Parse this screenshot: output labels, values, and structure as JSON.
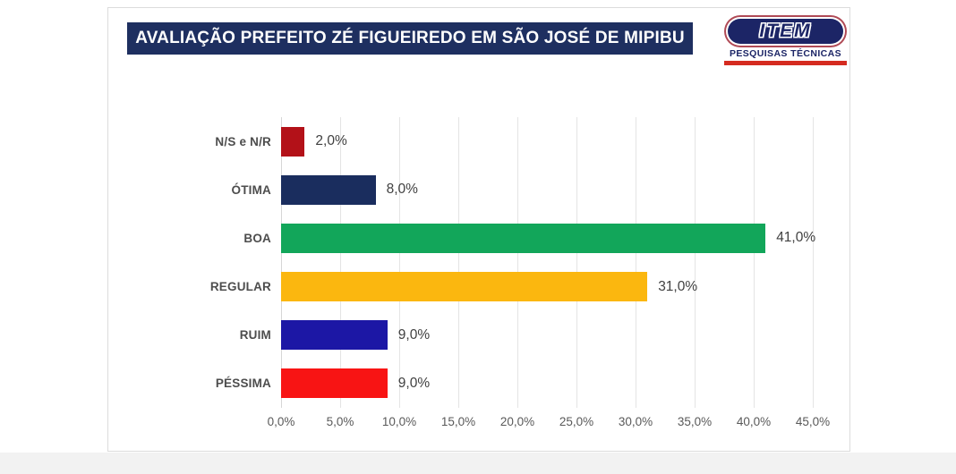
{
  "header": {
    "title": "AVALIAÇÃO PREFEITO ZÉ FIGUEIREDO EM SÃO JOSÉ DE MIPIBU",
    "title_bg": "#1e2f60",
    "title_color": "#ffffff"
  },
  "logo": {
    "name": "ITEM",
    "subtitle": "PESQUISAS TÉCNICAS",
    "pill_bg": "#1c2566",
    "ring_color": "#b04a56",
    "underline_color": "#d52b20"
  },
  "chart_data": {
    "type": "bar",
    "orientation": "horizontal",
    "title": "AVALIAÇÃO PREFEITO ZÉ FIGUEIREDO EM SÃO JOSÉ DE MIPIBU",
    "categories": [
      "N/S e N/R",
      "ÓTIMA",
      "BOA",
      "REGULAR",
      "RUIM",
      "PÉSSIMA"
    ],
    "values": [
      2.0,
      8.0,
      41.0,
      31.0,
      9.0,
      9.0
    ],
    "value_labels": [
      "2,0%",
      "8,0%",
      "41,0%",
      "31,0%",
      "9,0%",
      "9,0%"
    ],
    "bar_colors": [
      "#b31118",
      "#1a2d5e",
      "#12a65a",
      "#fbb70f",
      "#1c17a5",
      "#f81414"
    ],
    "x_ticks": [
      "0,0%",
      "5,0%",
      "10,0%",
      "15,0%",
      "20,0%",
      "25,0%",
      "30,0%",
      "35,0%",
      "40,0%",
      "45,0%"
    ],
    "x_tick_values": [
      0,
      5,
      10,
      15,
      20,
      25,
      30,
      35,
      40,
      45
    ],
    "xlim": [
      0,
      45
    ],
    "grid": true,
    "legend": "none",
    "xlabel": "",
    "ylabel": ""
  }
}
